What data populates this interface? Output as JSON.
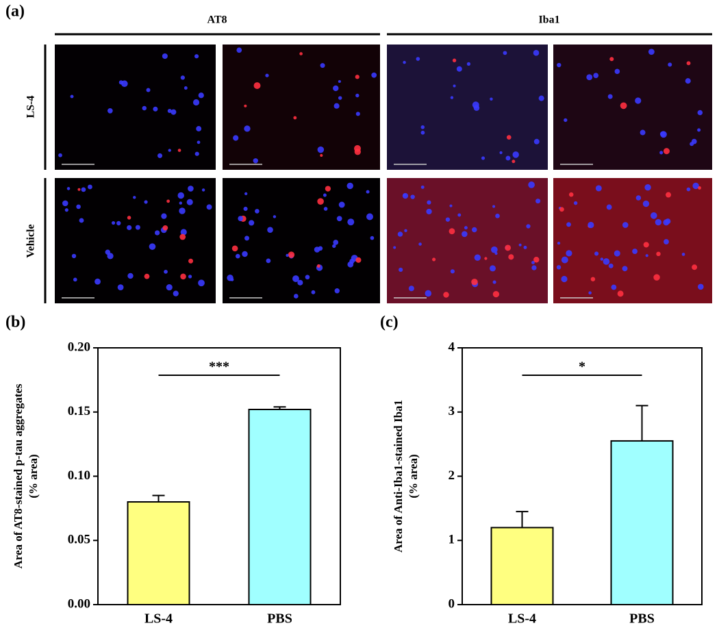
{
  "panel_a": {
    "label": "(a)",
    "columns": [
      "AT8",
      "Iba1"
    ],
    "rows": [
      "LS-4",
      "Vehicle"
    ]
  },
  "chart_data": [
    {
      "type": "bar",
      "panel": "(b)",
      "ylabel": [
        "Area of AT8-stained p-tau aggregates",
        "(% area)"
      ],
      "categories": [
        "LS-4",
        "PBS"
      ],
      "values": [
        0.08,
        0.152
      ],
      "errors": [
        0.005,
        0.002
      ],
      "colors": [
        "#ffff80",
        "#a0ffff"
      ],
      "annotation": "***",
      "ylim": [
        0,
        0.2
      ],
      "yticks": [
        {
          "value": 0,
          "label": "0.00"
        },
        {
          "value": 0.05,
          "label": "0.05"
        },
        {
          "value": 0.1,
          "label": "0.10"
        },
        {
          "value": 0.15,
          "label": "0.15"
        },
        {
          "value": 0.2,
          "label": "0.20"
        }
      ]
    },
    {
      "type": "bar",
      "panel": "(c)",
      "ylabel": [
        "Area of Anti-Iba1-stained Iba1",
        "(% area)"
      ],
      "categories": [
        "LS-4",
        "PBS"
      ],
      "values": [
        1.2,
        2.55
      ],
      "errors": [
        0.25,
        0.55
      ],
      "colors": [
        "#ffff80",
        "#a0ffff"
      ],
      "annotation": "*",
      "ylim": [
        0,
        4
      ],
      "yticks": [
        0,
        1,
        2,
        3,
        4
      ]
    }
  ]
}
